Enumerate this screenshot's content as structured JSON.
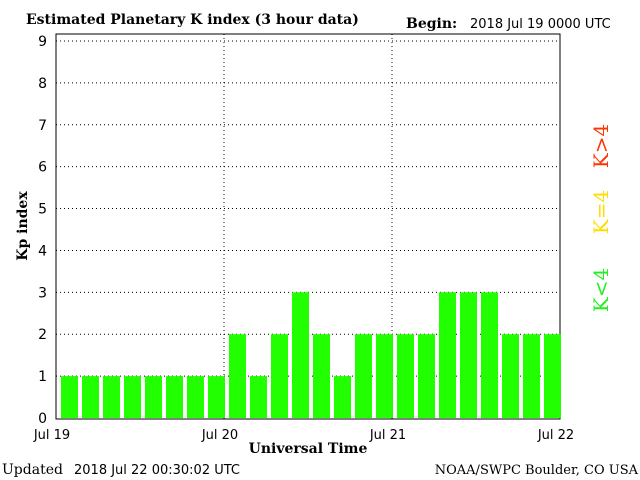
{
  "header": {
    "title": "Estimated Planetary K index (3 hour data)",
    "begin_label": "Begin:",
    "begin_value": "2018 Jul 19 0000 UTC"
  },
  "footer": {
    "updated_label": "Updated",
    "updated_value": "2018 Jul 22 00:30:02 UTC",
    "source": "NOAA/SWPC Boulder, CO USA"
  },
  "legend": [
    {
      "label": "K<4",
      "color": "#22ee22"
    },
    {
      "label": "K=4",
      "color": "#ffdd00"
    },
    {
      "label": "K>4",
      "color": "#ff3300"
    }
  ],
  "chart_data": {
    "type": "bar",
    "title": "Estimated Planetary K index (3 hour data)",
    "xlabel": "Universal Time",
    "ylabel": "Kp index",
    "ylim": [
      0,
      9
    ],
    "yticks": [
      0,
      1,
      2,
      3,
      4,
      5,
      6,
      7,
      8,
      9
    ],
    "xticks": [
      "Jul 19",
      "Jul 20",
      "Jul 21",
      "Jul 22"
    ],
    "grid": true,
    "bar_color": "#22ff00",
    "values": [
      1,
      1,
      1,
      1,
      1,
      1,
      1,
      1,
      2,
      1,
      2,
      3,
      2,
      1,
      2,
      2,
      2,
      2,
      3,
      3,
      3,
      2,
      2,
      2
    ]
  }
}
